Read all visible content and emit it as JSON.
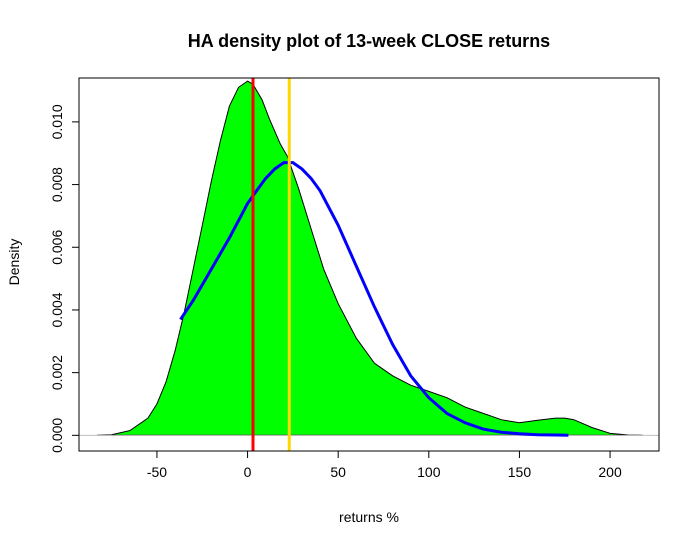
{
  "chart_data": {
    "type": "area",
    "title": "HA density plot of 13-week CLOSE returns",
    "xlabel": "returns %",
    "ylabel": "Density",
    "xlim": [
      -93,
      227
    ],
    "ylim": [
      -0.0005,
      0.0114
    ],
    "x_ticks": [
      -50,
      0,
      50,
      100,
      150,
      200
    ],
    "x_tick_labels": [
      "-50",
      "0",
      "50",
      "100",
      "150",
      "200"
    ],
    "y_ticks": [
      0,
      0.002,
      0.004,
      0.006,
      0.008,
      0.01
    ],
    "y_tick_labels": [
      "0.000",
      "0.002",
      "0.004",
      "0.006",
      "0.008",
      "0.010"
    ],
    "grid": false,
    "series": [
      {
        "kind": "density-fill",
        "color": "#00ff00",
        "x": [
          -83,
          -75,
          -65,
          -55,
          -50,
          -45,
          -40,
          -35,
          -30,
          -25,
          -20,
          -15,
          -10,
          -5,
          0,
          3,
          8,
          12,
          18,
          22,
          28,
          35,
          42,
          50,
          60,
          70,
          80,
          90,
          100,
          110,
          120,
          130,
          140,
          150,
          160,
          170,
          175,
          180,
          190,
          200,
          210,
          218
        ],
        "y": [
          0,
          2e-05,
          0.00015,
          0.00055,
          0.001,
          0.0017,
          0.0027,
          0.0039,
          0.0053,
          0.0067,
          0.0081,
          0.0094,
          0.0105,
          0.0111,
          0.0113,
          0.0112,
          0.0107,
          0.0101,
          0.0093,
          0.0089,
          0.0079,
          0.0066,
          0.0053,
          0.0042,
          0.0031,
          0.0023,
          0.0019,
          0.0016,
          0.0014,
          0.0012,
          0.0009,
          0.0007,
          0.0005,
          0.0004,
          0.00048,
          0.00055,
          0.00055,
          0.0005,
          0.00025,
          6e-05,
          1e-05,
          0
        ]
      },
      {
        "kind": "normal-curve",
        "color": "#0000ff",
        "x": [
          -37,
          -30,
          -20,
          -10,
          0,
          5,
          10,
          15,
          20,
          25,
          30,
          35,
          40,
          50,
          60,
          70,
          80,
          90,
          100,
          110,
          120,
          130,
          140,
          150,
          160,
          170,
          177
        ],
        "y": [
          0.0037,
          0.0043,
          0.0053,
          0.0063,
          0.0074,
          0.0078,
          0.0082,
          0.0085,
          0.0087,
          0.0087,
          0.0085,
          0.0082,
          0.0078,
          0.0067,
          0.0054,
          0.0041,
          0.0029,
          0.0019,
          0.0012,
          0.0007,
          0.0004,
          0.0002,
          0.0001,
          5e-05,
          2e-05,
          1e-05,
          5e-06
        ]
      }
    ],
    "reference_lines": [
      {
        "x": 3,
        "color": "#ff0000"
      },
      {
        "x": 23,
        "color": "#ffd700"
      }
    ],
    "baseline_color": "#c0c0c0"
  }
}
